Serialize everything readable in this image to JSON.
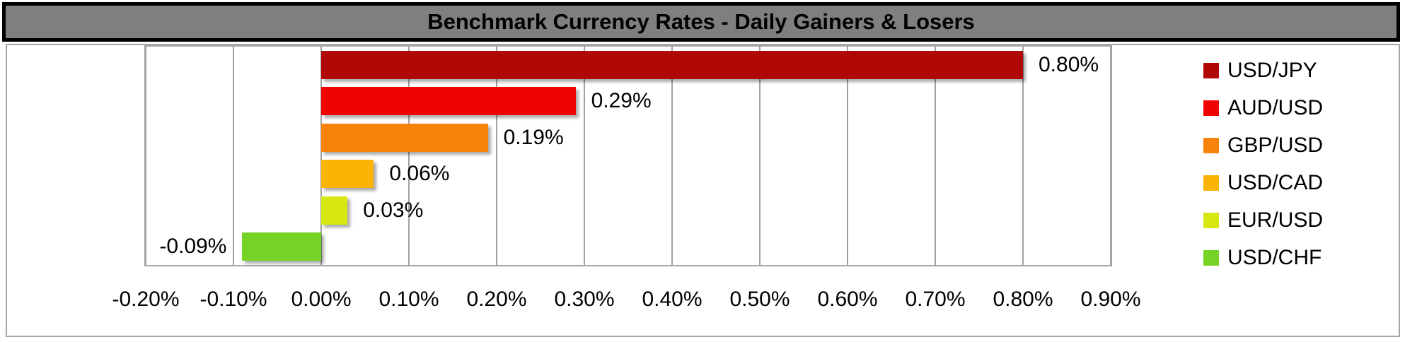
{
  "title": "Benchmark Currency Rates - Daily Gainers & Losers",
  "chart_data": {
    "type": "bar",
    "orientation": "horizontal",
    "title": "Benchmark Currency Rates - Daily Gainers & Losers",
    "categories": [
      "USD/JPY",
      "AUD/USD",
      "GBP/USD",
      "USD/CAD",
      "EUR/USD",
      "USD/CHF"
    ],
    "values": [
      0.8,
      0.29,
      0.19,
      0.06,
      0.03,
      -0.09
    ],
    "value_labels": [
      "0.80%",
      "0.29%",
      "0.19%",
      "0.06%",
      "0.03%",
      "-0.09%"
    ],
    "colors": [
      "#B00707",
      "#EE0202",
      "#F8830A",
      "#FBB306",
      "#D7E712",
      "#77D226"
    ],
    "x_axis": {
      "min": -0.2,
      "max": 0.9,
      "step": 0.1,
      "tick_labels": [
        "-0.20%",
        "-0.10%",
        "0.00%",
        "0.10%",
        "0.20%",
        "0.30%",
        "0.40%",
        "0.50%",
        "0.60%",
        "0.70%",
        "0.80%",
        "0.90%"
      ]
    },
    "grid": true,
    "legend": {
      "position": "right",
      "entries": [
        "USD/JPY",
        "AUD/USD",
        "GBP/USD",
        "USD/CAD",
        "EUR/USD",
        "USD/CHF"
      ]
    }
  },
  "colors": {
    "title_bg": "#7F7F7F",
    "title_border": "#000000",
    "title_text": "#000000",
    "chart_bg": "#FFFFFF",
    "chart_border": "#A6A6A6",
    "grid": "#A0A0A0",
    "label_text": "#000000"
  }
}
